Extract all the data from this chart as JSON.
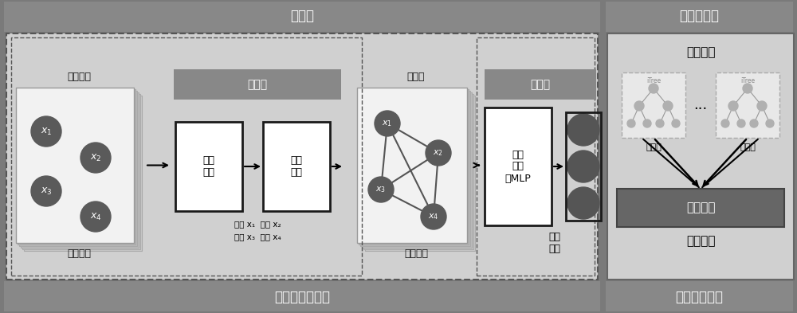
{
  "bg_color": "#7a7a7a",
  "panel_bg_light": "#d4d4d4",
  "panel_bg_encoder": "#c8c8c8",
  "panel_bg_anomaly": "#cccccc",
  "header_gray": "#808080",
  "dark_header": "#686868",
  "node_color": "#5a5a5a",
  "white": "#ffffff",
  "box_border": "#1a1a1a",
  "mid_gray": "#999999",
  "page_gray": "#d8d8d8",
  "dark_box": "#606060",
  "encoder_label": "编码器",
  "anomaly_label": "异常检测器",
  "gnn_label": "图神经网络模型",
  "iso_label": "孤立森林模型",
  "monitor_label": "监测数据",
  "hidden_label": "隐式关系",
  "graph_learn_label": "图学习",
  "graph_struct_label": "图结构",
  "graph_encode_label": "图编码",
  "sample_label": "采样\n函数",
  "weight_label": "权重\n函数",
  "mlp_label": "多层\n感知\n机MLP",
  "relation_label": "关系\n向量",
  "explicit_label": "显式关系",
  "iso_forest_label": "孤立森林",
  "avg_depth_label": "平均深度",
  "anomaly_judge_label": "异常判据",
  "iso_tree_label": "孤立树",
  "itree_label": "iTree",
  "legend_line1": "转速 x₁  振动 x₂",
  "legend_line2": "载荷 x₃  偏移 x₄"
}
